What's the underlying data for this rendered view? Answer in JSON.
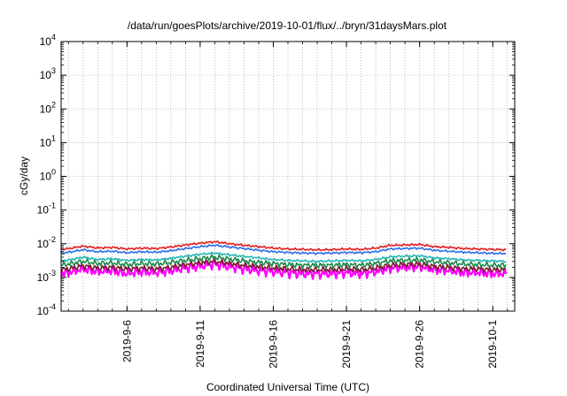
{
  "chart_data": {
    "type": "line",
    "title": "/data/run/goesPlots/archive/2019-10-01/flux/../bryn/31daysMars.plot",
    "xlabel": "Coordinated Universal Time (UTC)",
    "ylabel": "cGy/day",
    "y_scale": "log",
    "ylim": [
      0.0001,
      10000
    ],
    "xlim": [
      "2019-09-01T12:00",
      "2019-10-02T12:00"
    ],
    "grid": true,
    "y_ticks": [
      {
        "base": "10",
        "exp": "-4",
        "value": 0.0001
      },
      {
        "base": "10",
        "exp": "-3",
        "value": 0.001
      },
      {
        "base": "10",
        "exp": "-2",
        "value": 0.01
      },
      {
        "base": "10",
        "exp": "-1",
        "value": 0.1
      },
      {
        "base": "10",
        "exp": "0",
        "value": 1
      },
      {
        "base": "10",
        "exp": "1",
        "value": 10
      },
      {
        "base": "10",
        "exp": "2",
        "value": 100
      },
      {
        "base": "10",
        "exp": "3",
        "value": 1000
      },
      {
        "base": "10",
        "exp": "4",
        "value": 10000
      }
    ],
    "x_ticks": [
      "2019-9-6",
      "2019-9-11",
      "2019-9-16",
      "2019-9-21",
      "2019-9-26",
      "2019-10-1"
    ],
    "x_tick_dates": [
      "2019-09-06",
      "2019-09-11",
      "2019-09-16",
      "2019-09-21",
      "2019-09-26",
      "2019-10-01"
    ],
    "x": [
      "2019-09-01",
      "2019-09-02",
      "2019-09-03",
      "2019-09-04",
      "2019-09-05",
      "2019-09-06",
      "2019-09-07",
      "2019-09-08",
      "2019-09-09",
      "2019-09-10",
      "2019-09-11",
      "2019-09-12",
      "2019-09-13",
      "2019-09-14",
      "2019-09-15",
      "2019-09-16",
      "2019-09-17",
      "2019-09-18",
      "2019-09-19",
      "2019-09-20",
      "2019-09-21",
      "2019-09-22",
      "2019-09-23",
      "2019-09-24",
      "2019-09-25",
      "2019-09-26",
      "2019-09-27",
      "2019-09-28",
      "2019-09-29",
      "2019-09-30",
      "2019-10-01",
      "2019-10-02"
    ],
    "series": [
      {
        "color": "#e41a1c",
        "values": [
          0.0065,
          0.0072,
          0.0085,
          0.0075,
          0.0078,
          0.007,
          0.0074,
          0.0072,
          0.008,
          0.0092,
          0.0104,
          0.0115,
          0.01,
          0.009,
          0.0082,
          0.0074,
          0.007,
          0.0068,
          0.0066,
          0.0067,
          0.007,
          0.0068,
          0.0074,
          0.009,
          0.0092,
          0.0095,
          0.0082,
          0.0078,
          0.0072,
          0.007,
          0.0068,
          0.0066
        ]
      },
      {
        "color": "#2c6ee8",
        "values": [
          0.005,
          0.0056,
          0.0066,
          0.0058,
          0.006,
          0.0054,
          0.0058,
          0.0056,
          0.0062,
          0.0072,
          0.0082,
          0.009,
          0.008,
          0.0072,
          0.0064,
          0.0058,
          0.0055,
          0.0053,
          0.0052,
          0.0053,
          0.0055,
          0.0054,
          0.0058,
          0.007,
          0.0072,
          0.0074,
          0.0064,
          0.006,
          0.0056,
          0.0054,
          0.0052,
          0.0051
        ]
      },
      {
        "color": "#22b5b5",
        "values": [
          0.003,
          0.0033,
          0.004,
          0.0034,
          0.0036,
          0.0032,
          0.0034,
          0.0033,
          0.0037,
          0.0043,
          0.0049,
          0.0053,
          0.0047,
          0.0042,
          0.0038,
          0.0034,
          0.0032,
          0.0031,
          0.003,
          0.0031,
          0.0032,
          0.0031,
          0.0034,
          0.0041,
          0.0043,
          0.0044,
          0.0038,
          0.0036,
          0.0033,
          0.0032,
          0.0031,
          0.003
        ]
      },
      {
        "color": "#1a8a4a",
        "values": [
          0.0022,
          0.0025,
          0.003,
          0.0026,
          0.0027,
          0.0024,
          0.0026,
          0.0025,
          0.0028,
          0.0032,
          0.0036,
          0.004,
          0.0035,
          0.0031,
          0.0028,
          0.0026,
          0.0024,
          0.0023,
          0.0023,
          0.0023,
          0.0024,
          0.0023,
          0.0026,
          0.0031,
          0.0032,
          0.0033,
          0.0029,
          0.0027,
          0.0025,
          0.0024,
          0.0023,
          0.0023
        ]
      },
      {
        "color": "#7a1c2a",
        "values": [
          0.0016,
          0.0018,
          0.0022,
          0.0019,
          0.002,
          0.0018,
          0.0019,
          0.0018,
          0.002,
          0.0024,
          0.0027,
          0.003,
          0.0026,
          0.0023,
          0.0021,
          0.0019,
          0.0018,
          0.0017,
          0.0017,
          0.0017,
          0.0018,
          0.0017,
          0.0019,
          0.0023,
          0.0024,
          0.0025,
          0.0021,
          0.002,
          0.0018,
          0.0018,
          0.0017,
          0.0017
        ]
      },
      {
        "color": "#ff00ff",
        "values": [
          0.0012,
          0.0014,
          0.0018,
          0.0015,
          0.0016,
          0.0013,
          0.0015,
          0.0014,
          0.0016,
          0.0019,
          0.0022,
          0.0025,
          0.0021,
          0.0018,
          0.0016,
          0.0015,
          0.0014,
          0.0013,
          0.0013,
          0.0013,
          0.0014,
          0.0013,
          0.0015,
          0.0019,
          0.002,
          0.0021,
          0.0017,
          0.0016,
          0.0014,
          0.0014,
          0.0013,
          0.0013
        ]
      }
    ]
  }
}
